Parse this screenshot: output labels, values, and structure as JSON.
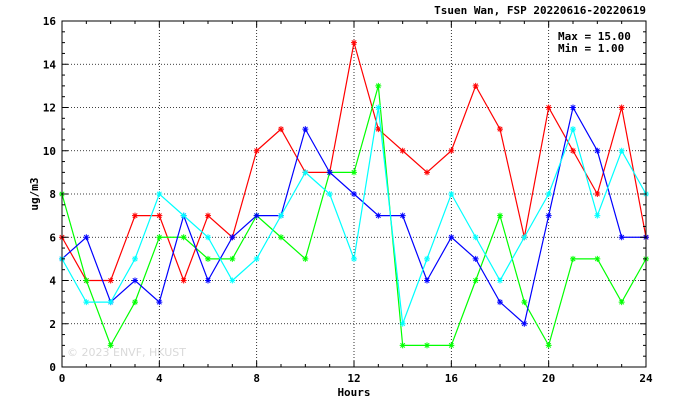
{
  "chart_data": {
    "type": "line",
    "title": "Tsuen Wan, FSP 20220616-20220619",
    "xlabel": "Hours",
    "ylabel": "ug/m3",
    "xlim": [
      0,
      24
    ],
    "ylim": [
      0,
      16
    ],
    "x_ticks": [
      "0",
      "4",
      "8",
      "12",
      "16",
      "20",
      "24"
    ],
    "y_ticks": [
      "0",
      "2",
      "4",
      "6",
      "8",
      "10",
      "12",
      "14",
      "16"
    ],
    "grid": true,
    "stats": {
      "max_label": "Max = 15.00",
      "min_label": "Min =  1.00"
    },
    "watermark": "© 2023 ENVF, HKUST",
    "x": [
      0,
      1,
      2,
      3,
      4,
      5,
      6,
      7,
      8,
      9,
      10,
      11,
      12,
      13,
      14,
      15,
      16,
      17,
      18,
      19,
      20,
      21,
      22,
      23,
      24
    ],
    "series": [
      {
        "color": "#ff0000",
        "values": [
          6,
          4,
          4,
          7,
          7,
          4,
          7,
          6,
          10,
          11,
          9,
          9,
          15,
          11,
          10,
          9,
          10,
          13,
          11,
          6,
          12,
          10,
          8,
          12,
          6
        ]
      },
      {
        "color": "#00ff00",
        "values": [
          8,
          4,
          1,
          3,
          6,
          6,
          5,
          5,
          7,
          6,
          5,
          9,
          9,
          13,
          1,
          1,
          1,
          4,
          7,
          3,
          1,
          5,
          5,
          3,
          5
        ]
      },
      {
        "color": "#0000ff",
        "values": [
          5,
          6,
          3,
          4,
          3,
          7,
          4,
          6,
          7,
          7,
          11,
          9,
          8,
          7,
          7,
          4,
          6,
          5,
          3,
          2,
          7,
          12,
          10,
          6,
          6
        ]
      },
      {
        "color": "#00ffff",
        "values": [
          5,
          3,
          3,
          5,
          8,
          7,
          6,
          4,
          5,
          7,
          9,
          8,
          5,
          12,
          2,
          5,
          8,
          6,
          4,
          6,
          8,
          11,
          7,
          10,
          8
        ]
      }
    ]
  }
}
